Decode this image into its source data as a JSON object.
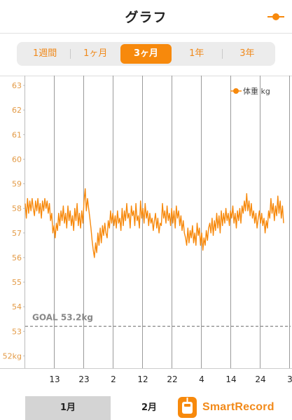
{
  "header": {
    "title": "グラフ"
  },
  "tabs": [
    {
      "label": "1週間",
      "active": false
    },
    {
      "label": "1ヶ月",
      "active": false
    },
    {
      "label": "3ヶ月",
      "active": true
    },
    {
      "label": "1年",
      "active": false
    },
    {
      "label": "3年",
      "active": false
    }
  ],
  "colors": {
    "accent": "#f7890c",
    "goal_line": "#999999",
    "grid": "#9a9a9a"
  },
  "chart_data": {
    "type": "line",
    "series": [
      {
        "name": "体重 kg",
        "values": [
          58.2,
          57.6,
          58.4,
          57.8,
          58.3,
          57.9,
          58.4,
          58.0,
          57.7,
          58.3,
          57.9,
          58.4,
          57.8,
          58.2,
          57.6,
          58.3,
          57.9,
          58.4,
          58.0,
          58.3,
          57.8,
          58.2,
          57.5,
          57.8,
          57.0,
          57.3,
          56.8,
          57.4,
          57.1,
          57.8,
          57.3,
          57.9,
          57.5,
          58.1,
          57.4,
          57.8,
          57.2,
          58.1,
          57.5,
          57.9,
          57.3,
          57.7,
          57.1,
          58.0,
          57.5,
          58.2,
          57.3,
          57.8,
          57.2,
          57.9,
          57.4,
          58.3,
          58.8,
          57.9,
          58.4,
          58.0,
          57.6,
          57.2,
          56.7,
          56.3,
          56.0,
          56.6,
          56.2,
          57.0,
          56.5,
          57.2,
          56.6,
          57.3,
          56.9,
          57.4,
          57.0,
          56.8,
          57.5,
          57.2,
          57.9,
          57.4,
          57.8,
          57.3,
          57.7,
          57.2,
          57.9,
          57.4,
          57.6,
          57.1,
          58.0,
          57.3,
          57.9,
          57.5,
          58.2,
          57.6,
          57.8,
          57.2,
          58.1,
          57.7,
          57.9,
          57.3,
          58.2,
          57.5,
          57.7,
          57.2,
          58.3,
          57.6,
          58.0,
          57.4,
          58.2,
          57.6,
          57.9,
          57.3,
          57.8,
          57.4,
          57.6,
          57.1,
          57.5,
          57.8,
          57.2,
          57.6,
          57.0,
          57.4,
          57.3,
          58.2,
          57.6,
          57.9,
          57.4,
          58.1,
          57.5,
          57.8,
          57.3,
          58.0,
          57.4,
          57.9,
          57.2,
          58.1,
          57.6,
          57.9,
          57.3,
          57.7,
          57.1,
          57.5,
          57.0,
          56.8,
          56.5,
          57.2,
          56.6,
          57.1,
          56.8,
          57.3,
          56.6,
          57.0,
          56.5,
          57.4,
          56.9,
          57.2,
          56.5,
          57.0,
          56.3,
          56.8,
          56.5,
          57.1,
          56.7,
          57.2,
          57.4,
          57.0,
          57.6,
          56.9,
          57.5,
          57.1,
          57.8,
          57.2,
          57.7,
          57.0,
          57.9,
          57.3,
          57.8,
          57.4,
          58.0,
          57.5,
          57.8,
          57.3,
          57.9,
          57.6,
          58.1,
          57.4,
          57.8,
          57.2,
          57.9,
          57.5,
          58.0,
          57.4,
          58.1,
          57.8,
          58.3,
          57.9,
          58.6,
          57.9,
          58.3,
          57.7,
          58.2,
          57.6,
          57.9,
          57.4,
          57.8,
          57.2,
          57.6,
          57.9,
          57.4,
          57.8,
          57.3,
          57.6,
          57.0,
          57.5,
          57.2,
          57.9,
          57.6,
          58.4,
          57.8,
          58.2,
          57.5,
          58.1,
          57.7,
          58.5,
          57.8,
          58.3,
          57.6,
          58.1,
          57.4
        ],
        "color": "#f7890c"
      }
    ],
    "ylim": [
      51.5,
      63.4
    ],
    "y_ticks": [
      {
        "value": 63,
        "label": "63"
      },
      {
        "value": 62,
        "label": "62"
      },
      {
        "value": 61,
        "label": "61"
      },
      {
        "value": 60,
        "label": "60"
      },
      {
        "value": 59,
        "label": "59"
      },
      {
        "value": 58,
        "label": "58"
      },
      {
        "value": 57,
        "label": "57"
      },
      {
        "value": 56,
        "label": "56"
      },
      {
        "value": 55,
        "label": "55"
      },
      {
        "value": 54,
        "label": "54"
      },
      {
        "value": 53,
        "label": "53"
      },
      {
        "value": 52,
        "label": "52kg"
      }
    ],
    "x_ticks": [
      {
        "label": "13",
        "color": "#222222"
      },
      {
        "label": "23",
        "color": "#5fbfc9"
      },
      {
        "label": "2",
        "color": "#222222"
      },
      {
        "label": "12",
        "color": "#222222"
      },
      {
        "label": "22",
        "color": "#222222"
      },
      {
        "label": "4",
        "color": "#222222"
      },
      {
        "label": "14",
        "color": "#e88a8a"
      },
      {
        "label": "24",
        "color": "#222222"
      },
      {
        "label": "3",
        "color": "#5fbfc9"
      }
    ],
    "goal": {
      "value": 53.2,
      "label": "GOAL 53.2kg"
    },
    "legend": {
      "label": "体重 kg",
      "position": "top-right"
    },
    "grid": true
  },
  "bottom": {
    "months": [
      {
        "label": "1月",
        "active": true
      },
      {
        "label": "2月",
        "active": false
      }
    ],
    "brand_name": "SmartRecord"
  }
}
